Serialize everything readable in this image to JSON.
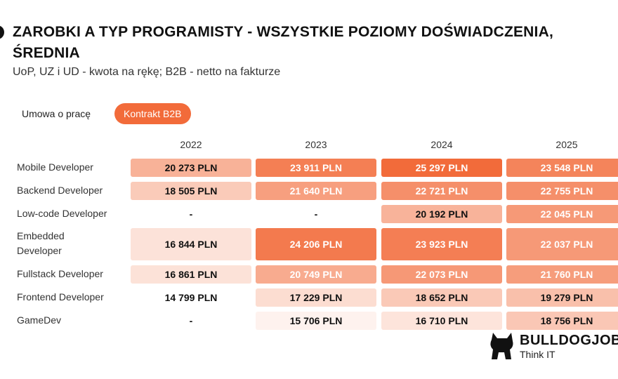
{
  "header": {
    "title": "ZAROBKI A TYP PROGRAMISTY - WSZYSTKIE POZIOMY DOŚWIADCZENIA, ŚREDNIA",
    "subtitle": "UoP, UZ i UD - kwota na rękę; B2B - netto na fakturze"
  },
  "tabs": [
    {
      "label": "Umowa o pracę",
      "active": false
    },
    {
      "label": "Kontrakt B2B",
      "active": true
    }
  ],
  "chart_data": {
    "type": "table",
    "columns": [
      "2022",
      "2023",
      "2024",
      "2025"
    ],
    "rows": [
      {
        "label": "Mobile Developer",
        "values": [
          "20 273 PLN",
          "23 911 PLN",
          "25 297 PLN",
          "23 548 PLN"
        ],
        "numbers": [
          20273,
          23911,
          25297,
          23548
        ]
      },
      {
        "label": "Backend Developer",
        "values": [
          "18 505 PLN",
          "21 640 PLN",
          "22 721 PLN",
          "22 755 PLN"
        ],
        "numbers": [
          18505,
          21640,
          22721,
          22755
        ]
      },
      {
        "label": "Low-code Developer",
        "values": [
          "-",
          "-",
          "20 192 PLN",
          "22 045 PLN"
        ],
        "numbers": [
          null,
          null,
          20192,
          22045
        ]
      },
      {
        "label": "Embedded Developer",
        "values": [
          "16 844 PLN",
          "24 206 PLN",
          "23 923 PLN",
          "22 037 PLN"
        ],
        "numbers": [
          16844,
          24206,
          23923,
          22037
        ]
      },
      {
        "label": "Fullstack Developer",
        "values": [
          "16 861 PLN",
          "20 749 PLN",
          "22 073 PLN",
          "21 760 PLN"
        ],
        "numbers": [
          16861,
          20749,
          22073,
          21760
        ]
      },
      {
        "label": "Frontend Developer",
        "values": [
          "14 799 PLN",
          "17 229 PLN",
          "18 652 PLN",
          "19 279 PLN"
        ],
        "numbers": [
          14799,
          17229,
          18652,
          19279
        ]
      },
      {
        "label": "GameDev",
        "values": [
          "-",
          "15 706 PLN",
          "16 710 PLN",
          "18 756 PLN"
        ],
        "numbers": [
          null,
          15706,
          16710,
          18756
        ]
      }
    ],
    "color_scale": {
      "low": "#ffffff",
      "high": "#f26b3a",
      "min": 14799,
      "max": 25297
    }
  },
  "logo": {
    "name": "BULLDOGJOB",
    "tagline": "Think IT",
    "icon": "bulldog-icon"
  }
}
